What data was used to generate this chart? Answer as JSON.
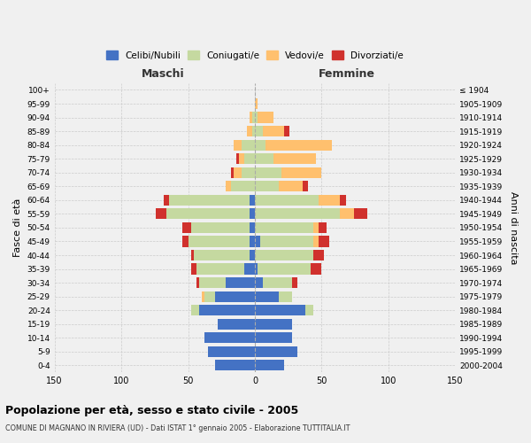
{
  "age_groups": [
    "0-4",
    "5-9",
    "10-14",
    "15-19",
    "20-24",
    "25-29",
    "30-34",
    "35-39",
    "40-44",
    "45-49",
    "50-54",
    "55-59",
    "60-64",
    "65-69",
    "70-74",
    "75-79",
    "80-84",
    "85-89",
    "90-94",
    "95-99",
    "100+"
  ],
  "birth_years": [
    "2000-2004",
    "1995-1999",
    "1990-1994",
    "1985-1989",
    "1980-1984",
    "1975-1979",
    "1970-1974",
    "1965-1969",
    "1960-1964",
    "1955-1959",
    "1950-1954",
    "1945-1949",
    "1940-1944",
    "1935-1939",
    "1930-1934",
    "1925-1929",
    "1920-1924",
    "1915-1919",
    "1910-1914",
    "1905-1909",
    "≤ 1904"
  ],
  "males": {
    "celibi": [
      30,
      35,
      38,
      28,
      42,
      30,
      22,
      8,
      4,
      4,
      4,
      4,
      4,
      0,
      0,
      0,
      0,
      0,
      0,
      0,
      0
    ],
    "coniugati": [
      0,
      0,
      0,
      0,
      6,
      8,
      20,
      36,
      42,
      46,
      44,
      62,
      60,
      18,
      10,
      8,
      10,
      2,
      2,
      0,
      0
    ],
    "vedovi": [
      0,
      0,
      0,
      0,
      0,
      2,
      0,
      0,
      0,
      0,
      0,
      0,
      0,
      4,
      6,
      4,
      6,
      4,
      2,
      0,
      0
    ],
    "divorziati": [
      0,
      0,
      0,
      0,
      0,
      0,
      2,
      4,
      2,
      4,
      6,
      8,
      4,
      0,
      2,
      2,
      0,
      0,
      0,
      0,
      0
    ]
  },
  "females": {
    "nubili": [
      22,
      32,
      28,
      28,
      38,
      18,
      6,
      2,
      0,
      4,
      0,
      0,
      0,
      0,
      0,
      0,
      0,
      0,
      0,
      0,
      0
    ],
    "coniugate": [
      0,
      0,
      0,
      0,
      6,
      10,
      22,
      40,
      44,
      40,
      44,
      64,
      48,
      18,
      20,
      14,
      8,
      6,
      2,
      0,
      0
    ],
    "vedove": [
      0,
      0,
      0,
      0,
      0,
      0,
      0,
      0,
      0,
      4,
      4,
      10,
      16,
      18,
      30,
      32,
      50,
      16,
      12,
      2,
      0
    ],
    "divorziate": [
      0,
      0,
      0,
      0,
      0,
      0,
      4,
      8,
      8,
      8,
      6,
      10,
      4,
      4,
      0,
      0,
      0,
      4,
      0,
      0,
      0
    ]
  },
  "colors": {
    "celibi": "#4472c4",
    "coniugati": "#c5d9a0",
    "vedovi": "#ffc06e",
    "divorziati": "#d0312d"
  },
  "title": "Popolazione per età, sesso e stato civile - 2005",
  "subtitle": "COMUNE DI MAGNANO IN RIVIERA (UD) - Dati ISTAT 1° gennaio 2005 - Elaborazione TUTTITALIA.IT",
  "xlabel_left": "Maschi",
  "xlabel_right": "Femmine",
  "ylabel_left": "Fasce di età",
  "ylabel_right": "Anni di nascita",
  "xlim": 150,
  "bg_color": "#f0f0f0",
  "legend_labels": [
    "Celibi/Nubili",
    "Coniugati/e",
    "Vedovi/e",
    "Divorziati/e"
  ]
}
